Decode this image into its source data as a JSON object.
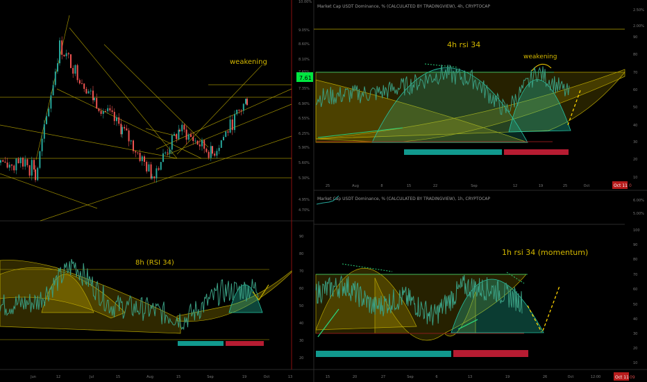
{
  "colors": {
    "bg": "#000000",
    "grid": "#141414",
    "candle_up": "#26a69a",
    "candle_down": "#ef5350",
    "yellow": "#d4b800",
    "teal": "#26c6a6",
    "teal_bar": "#11998e",
    "red_bar": "#b71c32",
    "green_label": "#00e640",
    "axis_text": "#787878",
    "rsi_line": "#3a9e82"
  },
  "panels": {
    "left_top": {
      "y_ticks": [
        "9.05%",
        "8.60%",
        "8.10%",
        "7.65%",
        "7.35%",
        "6.90%",
        "6.55%",
        "6.25%",
        "5.90%",
        "5.60%",
        "5.30%",
        "4.95%",
        "4.70%"
      ],
      "top_tick": "10.00%",
      "price_label": "7.61",
      "annotation": "weakening"
    },
    "left_bottom": {
      "y_ticks": [
        "90",
        "80",
        "70",
        "60",
        "50",
        "40",
        "30",
        "20"
      ],
      "annotation": "8h (RSI 34)"
    },
    "left_x_axis": [
      "Jun",
      "12",
      "Jul",
      "15",
      "Aug",
      "15",
      "Sep",
      "19",
      "Oct",
      "13"
    ],
    "right_top": {
      "title": "Market Cap USDT Dominance, % (CALCULATED BY TRADINGVIEW), 4h, CRYPTOCAP",
      "y_ticks": [
        "2.50%",
        "2.00%",
        "90",
        "80",
        "70",
        "60",
        "50",
        "40",
        "30",
        "20",
        "10"
      ],
      "annotation_main": "4h rsi 34",
      "annotation_small": "weakening",
      "x_axis": [
        "25",
        "Aug",
        "8",
        "15",
        "22",
        "Sep",
        "12",
        "19",
        "25",
        "Oct"
      ],
      "date_badge": "Oct 11",
      "date_badge2": "0"
    },
    "right_bottom": {
      "title": "Market Cap USDT Dominance, % (CALCULATED BY TRADINGVIEW), 1h, CRYPTOCAP",
      "y_ticks": [
        "6.00%",
        "5.00%",
        "100",
        "90",
        "80",
        "70",
        "60",
        "50",
        "40",
        "30",
        "20",
        "10"
      ],
      "annotation_main": "1h rsi 34 (momentum)",
      "x_axis": [
        "15",
        "20",
        "27",
        "Sep",
        "6",
        "13",
        "19",
        "26",
        "Oct",
        "12:00"
      ],
      "date_badge": "Oct 11",
      "date_badge2": "09"
    },
    "left_top_title": "Market Cap USDT Dominance, % (CALCULATED BY TRADINGVIEW), 8h, CRYPTOCAP"
  },
  "chart_data": [
    {
      "type": "candlestick",
      "title": "Market Cap USDT Dominance, % (CALCULATED BY TRADINGVIEW), 8h, CRYPTOCAP",
      "ylim": [
        4.7,
        10.0
      ],
      "x": [
        "Jun",
        "12",
        "Jul",
        "15",
        "Aug",
        "15",
        "Sep",
        "19"
      ],
      "close": [
        5.7,
        8.9,
        7.6,
        6.9,
        5.8,
        6.9,
        6.3,
        7.61
      ]
    },
    {
      "type": "line",
      "title": "8h (RSI 34)",
      "ylim": [
        20,
        90
      ],
      "x": [
        "Jun",
        "12",
        "Jul",
        "15",
        "Aug",
        "15",
        "Sep",
        "19"
      ],
      "values": [
        50,
        52,
        74,
        50,
        48,
        42,
        58,
        60
      ]
    },
    {
      "type": "line",
      "title": "4h rsi 34",
      "ylim": [
        10,
        90
      ],
      "x": [
        "25",
        "Aug",
        "8",
        "15",
        "22",
        "Sep",
        "12",
        "19",
        "25"
      ],
      "values": [
        48,
        50,
        51,
        56,
        63,
        59,
        40,
        64,
        50
      ]
    },
    {
      "type": "line",
      "title": "1h rsi 34 (momentum)",
      "ylim": [
        10,
        100
      ],
      "x": [
        "15",
        "20",
        "27",
        "Sep",
        "6",
        "13",
        "19",
        "26"
      ],
      "values": [
        58,
        63,
        48,
        55,
        42,
        62,
        60,
        52
      ]
    }
  ]
}
